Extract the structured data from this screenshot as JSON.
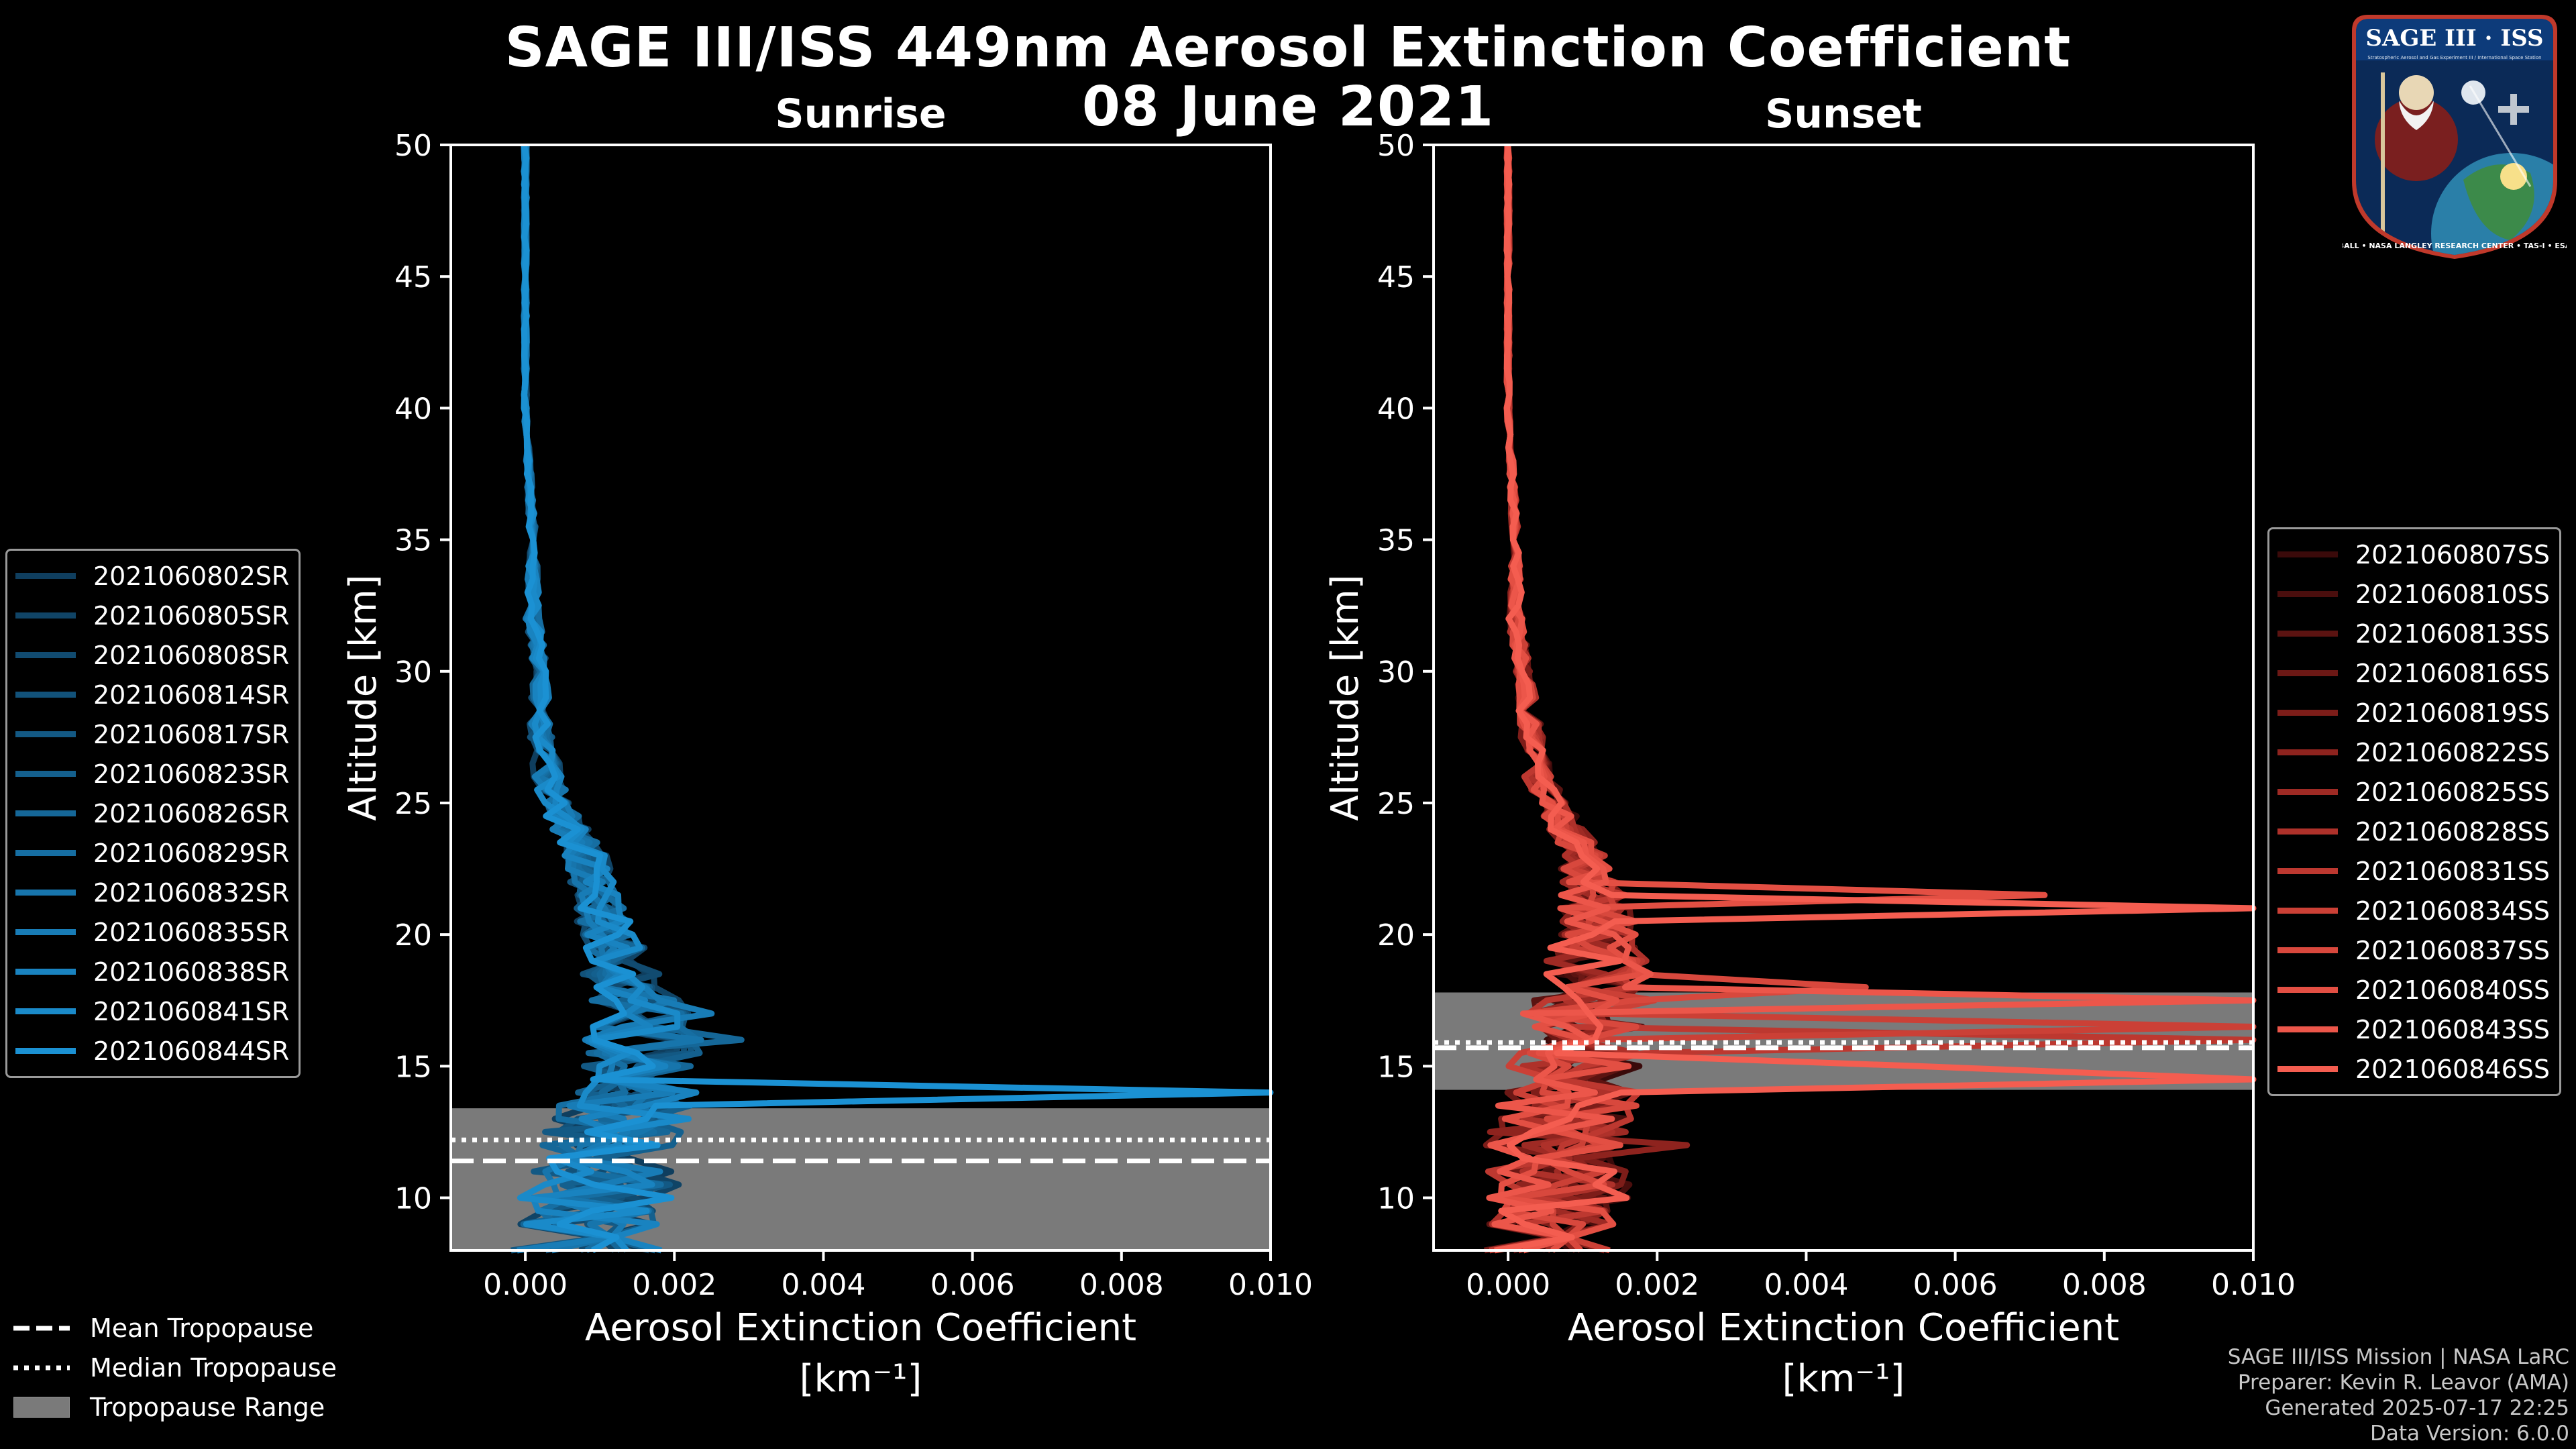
{
  "figure": {
    "title": "SAGE III/ISS 449nm Aerosol Extinction Coefficient",
    "date": "08 June 2021",
    "logo_text": "SAGE III · ISS",
    "logo_small": "Stratospheric Aerosol and Gas Experiment III / International Space Station",
    "logo_ring": "BALL • NASA LANGLEY RESEARCH CENTER • TAS-I • ESA",
    "credits": [
      "SAGE III/ISS Mission | NASA LaRC",
      "Preparer: Kevin R. Leavor (AMA)",
      "Generated 2025-07-17 22:25",
      "Data Version: 6.0.0"
    ],
    "colors": {
      "background": "#000000",
      "sunrise": "#1a8fd1",
      "sunset": "#e8574a",
      "tropopause_range": "#7a7a7a"
    }
  },
  "tropo_legend": {
    "mean": "Mean Tropopause",
    "median": "Median Tropopause",
    "range": "Tropopause Range"
  },
  "chart_data": [
    {
      "type": "line",
      "panel": "sunrise",
      "title": "Sunrise",
      "xlabel": "Aerosol Extinction Coefficient",
      "xunit": "[km⁻¹]",
      "ylabel": "Altitude [km]",
      "xlim": [
        -0.001,
        0.01
      ],
      "ylim": [
        8,
        50
      ],
      "xticks": [
        0.0,
        0.002,
        0.004,
        0.006,
        0.008,
        0.01
      ],
      "xtick_labels": [
        "0.000",
        "0.002",
        "0.004",
        "0.006",
        "0.008",
        "0.010"
      ],
      "yticks": [
        10,
        15,
        20,
        25,
        30,
        35,
        40,
        45,
        50
      ],
      "legend_position": "left",
      "tropopause": {
        "range": [
          8,
          13.4
        ],
        "mean": 11.4,
        "median": 12.2
      },
      "series": [
        {
          "name": "2021060802SR",
          "color": "#0f3e5e"
        },
        {
          "name": "2021060805SR",
          "color": "#104466"
        },
        {
          "name": "2021060808SR",
          "color": "#114b70"
        },
        {
          "name": "2021060814SR",
          "color": "#12527a"
        },
        {
          "name": "2021060817SR",
          "color": "#135984"
        },
        {
          "name": "2021060823SR",
          "color": "#14608e"
        },
        {
          "name": "2021060826SR",
          "color": "#156798"
        },
        {
          "name": "2021060829SR",
          "color": "#166ea2"
        },
        {
          "name": "2021060832SR",
          "color": "#1775ac"
        },
        {
          "name": "2021060835SR",
          "color": "#187cb6"
        },
        {
          "name": "2021060838SR",
          "color": "#1983c0"
        },
        {
          "name": "2021060841SR",
          "color": "#1a8ac9"
        },
        {
          "name": "2021060844SR",
          "color": "#1b91d3"
        }
      ],
      "profile_envelope": {
        "altitude": [
          50,
          45,
          40,
          35,
          32,
          30,
          28,
          26,
          25,
          24,
          23,
          22,
          21,
          20,
          19,
          18,
          17,
          16,
          15,
          14,
          13,
          12,
          11,
          10,
          9,
          8
        ],
        "center": [
          0.0,
          0.0,
          0.0,
          0.0001,
          0.0001,
          0.0002,
          0.0002,
          0.0003,
          0.0004,
          0.0006,
          0.0008,
          0.0009,
          0.001,
          0.0011,
          0.0012,
          0.0014,
          0.0016,
          0.0016,
          0.0015,
          0.0014,
          0.0013,
          0.0012,
          0.0011,
          0.001,
          0.0009,
          0.0008
        ],
        "spread": [
          2e-05,
          2e-05,
          2e-05,
          5e-05,
          0.0001,
          0.0001,
          0.00015,
          0.0002,
          0.0002,
          0.00025,
          0.0003,
          0.0003,
          0.00035,
          0.0004,
          0.0005,
          0.0006,
          0.0007,
          0.0008,
          0.0008,
          0.0009,
          0.001,
          0.001,
          0.001,
          0.0011,
          0.0011,
          0.0012
        ]
      },
      "spikes": [
        {
          "series": 12,
          "altitude": 13.9,
          "value": 0.01
        },
        {
          "series": 6,
          "altitude": 16.1,
          "value": 0.0029
        },
        {
          "series": 9,
          "altitude": 17.0,
          "value": 0.0025
        }
      ]
    },
    {
      "type": "line",
      "panel": "sunset",
      "title": "Sunset",
      "xlabel": "Aerosol Extinction Coefficient",
      "xunit": "[km⁻¹]",
      "ylabel": "Altitude [km]",
      "xlim": [
        -0.001,
        0.01
      ],
      "ylim": [
        8,
        50
      ],
      "xticks": [
        0.0,
        0.002,
        0.004,
        0.006,
        0.008,
        0.01
      ],
      "xtick_labels": [
        "0.000",
        "0.002",
        "0.004",
        "0.006",
        "0.008",
        "0.010"
      ],
      "yticks": [
        10,
        15,
        20,
        25,
        30,
        35,
        40,
        45,
        50
      ],
      "legend_position": "right",
      "tropopause": {
        "range": [
          14.1,
          17.8
        ],
        "mean": 15.7,
        "median": 15.9
      },
      "series": [
        {
          "name": "2021060807SS",
          "color": "#3a0a0a"
        },
        {
          "name": "2021060810SS",
          "color": "#4a0e0d"
        },
        {
          "name": "2021060813SS",
          "color": "#5b1311"
        },
        {
          "name": "2021060816SS",
          "color": "#6c1815"
        },
        {
          "name": "2021060819SS",
          "color": "#7d1d19"
        },
        {
          "name": "2021060822SS",
          "color": "#8e231e"
        },
        {
          "name": "2021060825SS",
          "color": "#9e2a24"
        },
        {
          "name": "2021060828SS",
          "color": "#ae312a"
        },
        {
          "name": "2021060831SS",
          "color": "#bd3830"
        },
        {
          "name": "2021060834SS",
          "color": "#cb4036"
        },
        {
          "name": "2021060837SS",
          "color": "#d8483d"
        },
        {
          "name": "2021060840SS",
          "color": "#e34f43"
        },
        {
          "name": "2021060843SS",
          "color": "#ec564a"
        },
        {
          "name": "2021060846SS",
          "color": "#f45d50"
        }
      ],
      "profile_envelope": {
        "altitude": [
          50,
          45,
          40,
          35,
          32,
          30,
          28,
          26,
          25,
          24,
          23,
          22,
          21,
          20,
          19,
          18,
          17,
          16,
          15,
          14,
          13,
          12,
          11,
          10,
          9,
          8
        ],
        "center": [
          0.0,
          0.0,
          0.0,
          0.0001,
          0.0001,
          0.0002,
          0.0003,
          0.0004,
          0.0006,
          0.0008,
          0.001,
          0.0011,
          0.0012,
          0.0012,
          0.0012,
          0.0012,
          0.0011,
          0.001,
          0.0009,
          0.0008,
          0.0008,
          0.0007,
          0.0007,
          0.0007,
          0.0006,
          0.0006
        ],
        "spread": [
          2e-05,
          2e-05,
          2e-05,
          5e-05,
          0.0001,
          0.0001,
          0.00015,
          0.0002,
          0.0002,
          0.00025,
          0.0003,
          0.0004,
          0.0005,
          0.0006,
          0.0007,
          0.0008,
          0.0009,
          0.0009,
          0.0009,
          0.001,
          0.001,
          0.001,
          0.001,
          0.001,
          0.001,
          0.001
        ]
      },
      "spikes": [
        {
          "series": 13,
          "altitude": 21.0,
          "value": 0.01
        },
        {
          "series": 11,
          "altitude": 21.5,
          "value": 0.0072
        },
        {
          "series": 10,
          "altitude": 18.0,
          "value": 0.0048
        },
        {
          "series": 12,
          "altitude": 17.4,
          "value": 0.01
        },
        {
          "series": 9,
          "altitude": 16.7,
          "value": 0.01
        },
        {
          "series": 13,
          "altitude": 15.2,
          "value": 0.0055
        },
        {
          "series": 8,
          "altitude": 15.9,
          "value": 0.01
        },
        {
          "series": 13,
          "altitude": 14.4,
          "value": 0.01
        },
        {
          "series": 5,
          "altitude": 12.2,
          "value": 0.0024
        }
      ]
    }
  ]
}
